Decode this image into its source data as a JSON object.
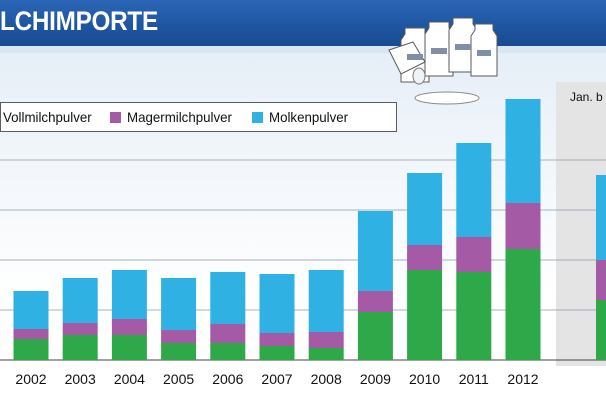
{
  "header": {
    "title": "LCHIMPORTE"
  },
  "side_panel": {
    "label": "Jan. b"
  },
  "colors": {
    "Vollmilchpulver": "#2fa84a",
    "Magermilchpulver": "#a45aa4",
    "Molkenpulver": "#2fb1e3",
    "header": "#1f56a2",
    "panel": "#e4e4e4"
  },
  "legend": [
    {
      "label": "Vollmilchpulver",
      "color": "#2fa84a"
    },
    {
      "label": "Magermilchpulver",
      "color": "#a45aa4"
    },
    {
      "label": "Molkenpulver",
      "color": "#2fb1e3"
    }
  ],
  "chart_data": {
    "type": "bar",
    "stacked": true,
    "categories": [
      "2002",
      "2003",
      "2004",
      "2005",
      "2006",
      "2007",
      "2008",
      "2009",
      "2010",
      "2011",
      "2012"
    ],
    "series": [
      {
        "name": "Vollmilchpulver",
        "values": [
          21,
          25,
          25,
          17,
          17,
          14,
          12,
          48,
          90,
          88,
          111
        ]
      },
      {
        "name": "Magermilchpulver",
        "values": [
          10,
          12,
          16,
          13,
          19,
          13,
          16,
          21,
          25,
          35,
          46
        ]
      },
      {
        "name": "Molkenpulver",
        "values": [
          38,
          45,
          49,
          52,
          52,
          59,
          62,
          80,
          72,
          94,
          104
        ]
      }
    ],
    "partial_period": {
      "label": "Jan. b",
      "series": [
        {
          "name": "Vollmilchpulver",
          "values": [
            60
          ]
        },
        {
          "name": "Magermilchpulver",
          "values": [
            40
          ]
        },
        {
          "name": "Molkenpulver",
          "values": [
            85
          ]
        }
      ]
    },
    "ylim": [
      0,
      270
    ],
    "grid": true
  }
}
